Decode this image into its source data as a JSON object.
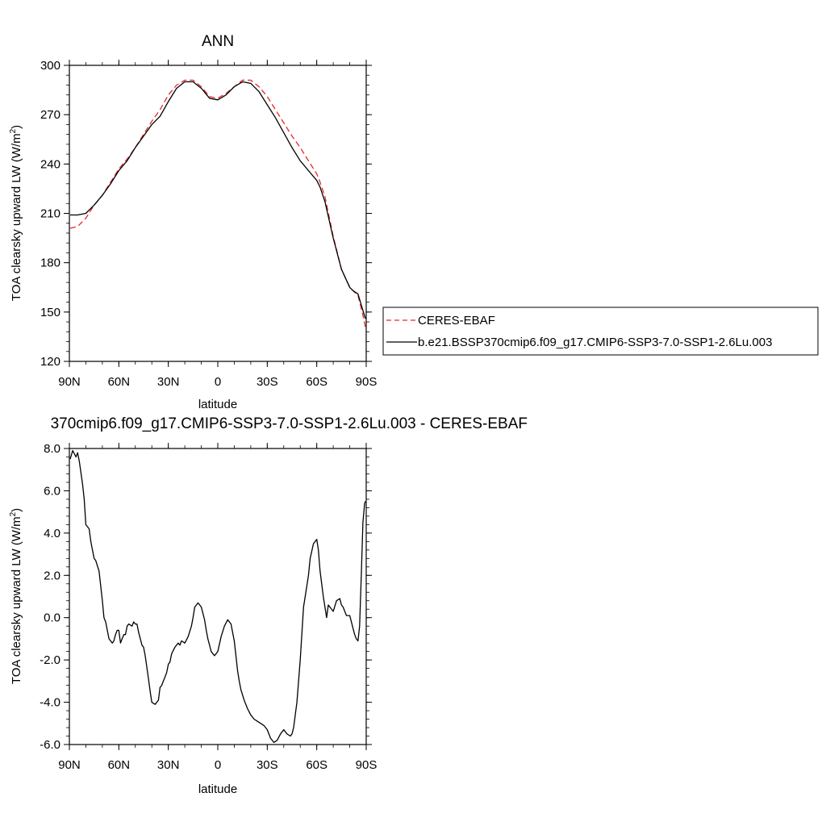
{
  "chart_data": [
    {
      "type": "line",
      "title": "ANN",
      "xlabel": "latitude",
      "ylabel": "TOA clearsky upward LW (W/m",
      "ylabel_sup": "2",
      "ylabel_close": ")",
      "xlim": [
        90,
        -90
      ],
      "ylim": [
        120,
        300
      ],
      "xticks": [
        90,
        60,
        30,
        0,
        -30,
        -60,
        -90
      ],
      "xtick_labels": [
        "90N",
        "60N",
        "30N",
        "0",
        "30S",
        "60S",
        "90S"
      ],
      "yticks": [
        120,
        150,
        180,
        210,
        240,
        270,
        300
      ],
      "ytick_labels": [
        "120",
        "150",
        "180",
        "210",
        "240",
        "270",
        "300"
      ],
      "legend_position": "right",
      "series": [
        {
          "name": "CERES-EBAF",
          "color": "#e8262a",
          "dash": "dashed",
          "x": [
            89.5,
            85,
            80,
            75,
            70,
            65,
            60,
            55,
            50,
            45,
            40,
            35,
            30,
            25,
            20,
            15,
            10,
            5,
            0,
            -5,
            -10,
            -15,
            -20,
            -25,
            -30,
            -35,
            -40,
            -45,
            -50,
            -55,
            -60,
            -62,
            -65,
            -70,
            -75,
            -80,
            -82,
            -85,
            -88,
            -89.5
          ],
          "y": [
            201,
            202,
            207,
            215,
            221,
            229,
            237,
            243,
            250,
            258,
            266,
            273,
            282,
            288,
            291,
            291,
            287,
            281,
            280,
            283,
            287,
            291,
            291,
            287,
            281,
            273,
            265,
            257,
            250,
            242,
            234,
            229,
            220,
            196,
            176,
            165,
            163,
            160,
            148,
            141
          ]
        },
        {
          "name": "b.e21.BSSP370cmip6.f09_g17.CMIP6-SSP3-7.0-SSP1-2.6Lu.003",
          "color": "#000000",
          "dash": "solid",
          "x": [
            89.5,
            85,
            80,
            75,
            70,
            65,
            60,
            55,
            50,
            45,
            40,
            35,
            30,
            25,
            20,
            15,
            10,
            5,
            0,
            -5,
            -10,
            -15,
            -20,
            -25,
            -30,
            -35,
            -40,
            -45,
            -50,
            -55,
            -60,
            -62,
            -65,
            -70,
            -75,
            -80,
            -82,
            -85,
            -88,
            -89.5
          ],
          "y": [
            209,
            209,
            210,
            215,
            221,
            228,
            236,
            242,
            250,
            257,
            264,
            269,
            278,
            286,
            290,
            290,
            286,
            280,
            279,
            282,
            287,
            290,
            289,
            284,
            276,
            268,
            259,
            250,
            242,
            236,
            230,
            226,
            217,
            195,
            176,
            165,
            163,
            161,
            151,
            146
          ]
        }
      ]
    },
    {
      "type": "line",
      "title": "370cmip6.f09_g17.CMIP6-SSP3-7.0-SSP1-2.6Lu.003 - CERES-EBAF",
      "xlabel": "latitude",
      "ylabel": "TOA clearsky upward LW (W/m",
      "ylabel_sup": "2",
      "ylabel_close": ")",
      "xlim": [
        90,
        -90
      ],
      "ylim": [
        -6.0,
        8.0
      ],
      "xticks": [
        90,
        60,
        30,
        0,
        -30,
        -60,
        -90
      ],
      "xtick_labels": [
        "90N",
        "60N",
        "30N",
        "0",
        "30S",
        "60S",
        "90S"
      ],
      "yticks": [
        -6,
        -4,
        -2,
        0,
        2,
        4,
        6,
        8
      ],
      "ytick_labels": [
        "-6.0",
        "-4.0",
        "-2.0",
        "0.0",
        "2.0",
        "4.0",
        "6.0",
        "8.0"
      ],
      "series": [
        {
          "color": "#000000",
          "x": [
            89.5,
            88,
            86,
            85,
            84,
            82,
            81,
            80,
            78,
            77,
            76,
            75,
            74,
            72,
            70,
            69,
            68,
            66,
            64,
            63,
            62,
            61,
            60,
            59,
            58,
            57,
            56,
            55,
            54,
            52,
            51,
            50,
            49,
            48,
            46,
            45,
            44,
            42,
            41,
            40,
            38,
            36,
            35,
            34,
            33,
            32,
            31,
            30,
            29,
            28,
            26,
            24,
            23,
            22,
            20,
            18,
            16,
            15,
            14,
            12,
            10,
            8,
            7,
            6,
            5,
            4,
            2,
            0,
            -2,
            -4,
            -6,
            -8,
            -10,
            -11,
            -12,
            -13,
            -14,
            -16,
            -18,
            -20,
            -22,
            -24,
            -26,
            -28,
            -30,
            -32,
            -34,
            -36,
            -38,
            -39,
            -40,
            -41,
            -42,
            -44,
            -45,
            -46,
            -48,
            -50,
            -52,
            -54,
            -55,
            -56,
            -58,
            -60,
            -61,
            -62,
            -64,
            -66,
            -67,
            -68,
            -70,
            -72,
            -74,
            -75,
            -76,
            -77,
            -78,
            -80,
            -82,
            -83,
            -84,
            -85,
            -86,
            -87,
            -88,
            -89,
            -89.5
          ],
          "y": [
            7.5,
            7.9,
            7.6,
            7.8,
            7.4,
            6.3,
            5.6,
            4.4,
            4.2,
            3.6,
            3.2,
            2.8,
            2.7,
            2.2,
            0.8,
            0.0,
            -0.2,
            -1.0,
            -1.2,
            -1.1,
            -0.8,
            -0.6,
            -0.6,
            -1.2,
            -1.0,
            -0.8,
            -0.8,
            -0.4,
            -0.3,
            -0.4,
            -0.2,
            -0.3,
            -0.3,
            -0.7,
            -1.3,
            -1.4,
            -1.8,
            -2.9,
            -3.5,
            -4.0,
            -4.1,
            -3.9,
            -3.3,
            -3.2,
            -3.0,
            -2.8,
            -2.6,
            -2.2,
            -2.1,
            -1.7,
            -1.4,
            -1.2,
            -1.3,
            -1.1,
            -1.2,
            -0.9,
            -0.4,
            0.0,
            0.5,
            0.7,
            0.5,
            -0.1,
            -0.6,
            -1.0,
            -1.3,
            -1.6,
            -1.8,
            -1.6,
            -0.9,
            -0.4,
            -0.1,
            -0.3,
            -1.1,
            -1.8,
            -2.5,
            -3.0,
            -3.4,
            -3.9,
            -4.3,
            -4.6,
            -4.8,
            -4.9,
            -5.0,
            -5.1,
            -5.3,
            -5.7,
            -5.9,
            -5.8,
            -5.5,
            -5.4,
            -5.3,
            -5.4,
            -5.5,
            -5.6,
            -5.5,
            -5.2,
            -4.0,
            -2.0,
            0.5,
            1.5,
            2.0,
            2.8,
            3.5,
            3.7,
            3.2,
            2.2,
            1.0,
            0.0,
            0.6,
            0.5,
            0.3,
            0.8,
            0.9,
            0.6,
            0.5,
            0.3,
            0.1,
            0.1,
            -0.5,
            -0.8,
            -1.0,
            -1.1,
            -0.4,
            2.0,
            4.5,
            5.4,
            5.5
          ]
        }
      ]
    }
  ]
}
